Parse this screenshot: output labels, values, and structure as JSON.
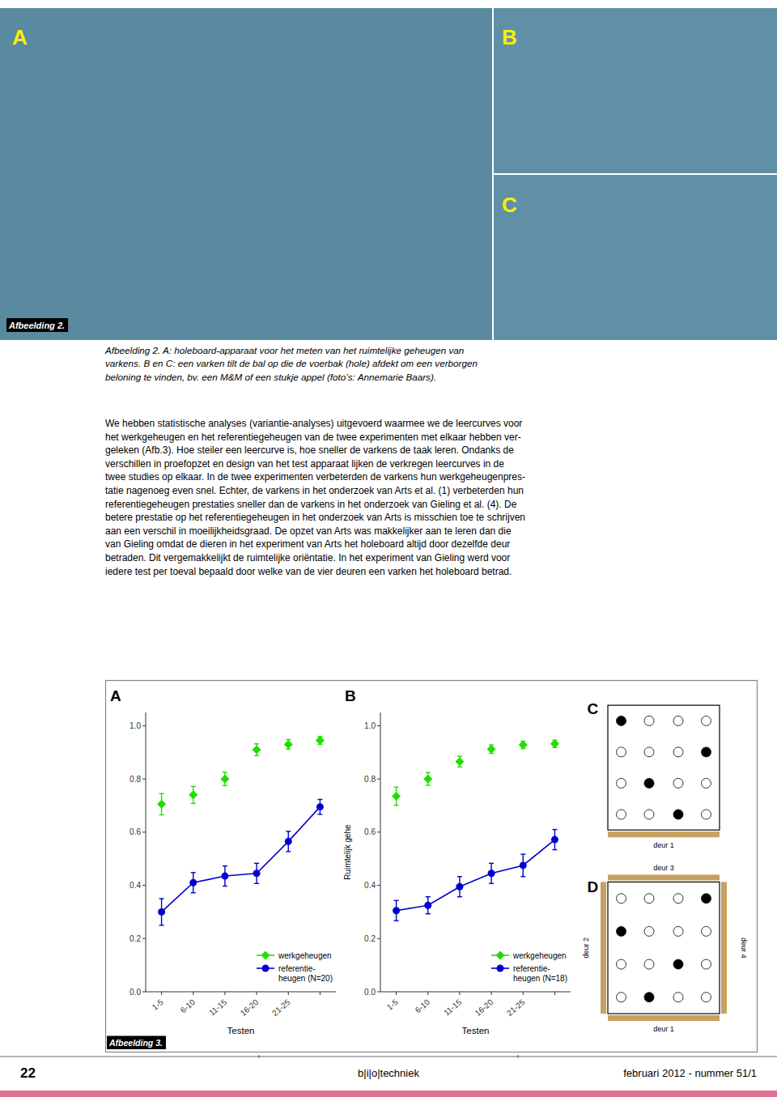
{
  "chart_data": [
    {
      "type": "line",
      "title": "A",
      "categories": [
        "1-5",
        "6-10",
        "11-15",
        "16-20",
        "21-25",
        null
      ],
      "x_label": "Testen",
      "ylim": [
        0.0,
        1.05
      ],
      "yticks": [
        {
          "value": 0.0,
          "label": "0.0"
        },
        0.2,
        0.4,
        0.6,
        0.8,
        {
          "value": 1.0,
          "label": "1.0"
        }
      ],
      "legend": "lower right",
      "annotations": [
        "Ruimtelijk gehe"
      ],
      "series": [
        {
          "name": "werkgeheugen",
          "color": "#22dd00",
          "marker": "diamond",
          "line_style": "none",
          "values": [
            0.705,
            0.74,
            0.8,
            0.91,
            0.93,
            0.945
          ],
          "errors": [
            0.04,
            0.032,
            0.025,
            0.022,
            0.018,
            0.015
          ]
        },
        {
          "name": "referentie-\nheugen (N=20)",
          "color": "#0000cc",
          "marker": "circle",
          "line_style": "solid",
          "values": [
            0.3,
            0.41,
            0.435,
            0.445,
            0.565,
            0.695
          ],
          "errors": [
            0.05,
            0.038,
            0.038,
            0.038,
            0.038,
            0.028
          ]
        }
      ]
    },
    {
      "type": "line",
      "title": "B",
      "categories": [
        "1-5",
        "6-10",
        "11-15",
        "16-20",
        "21-25",
        null
      ],
      "x_label": "Testen",
      "ylim": [
        0.0,
        1.05
      ],
      "yticks": [
        {
          "value": 0.0,
          "label": "0.0"
        },
        0.2,
        0.4,
        0.6,
        0.8,
        {
          "value": 1.0,
          "label": "1.0"
        }
      ],
      "legend": "lower right",
      "series": [
        {
          "name": "werkgeheugen",
          "color": "#22dd00",
          "marker": "diamond",
          "line_style": "none",
          "values": [
            0.735,
            0.8,
            0.865,
            0.912,
            0.928,
            0.932
          ],
          "errors": [
            0.034,
            0.024,
            0.02,
            0.016,
            0.014,
            0.014
          ]
        },
        {
          "name": "referentie-\nheugen (N=18)",
          "color": "#0000cc",
          "marker": "circle",
          "line_style": "solid",
          "values": [
            0.305,
            0.325,
            0.395,
            0.445,
            0.475,
            0.572
          ],
          "errors": [
            0.038,
            0.032,
            0.038,
            0.038,
            0.042,
            0.038
          ]
        }
      ]
    },
    {
      "type": "dot_grid",
      "title": "C",
      "color": "#c8a060",
      "annotations": [
        "deur 1"
      ],
      "values": [
        [
          1,
          0,
          0,
          0
        ],
        [
          0,
          0,
          0,
          1
        ],
        [
          0,
          1,
          0,
          0
        ],
        [
          0,
          0,
          1,
          0
        ]
      ]
    },
    {
      "type": "dot_grid",
      "title": "D",
      "color": "#c8a060",
      "annotations": [
        "deur 1",
        "deur 2",
        "deur 3",
        "deur 4"
      ],
      "values": [
        [
          0,
          0,
          0,
          1
        ],
        [
          1,
          0,
          0,
          0
        ],
        [
          0,
          0,
          1,
          0
        ],
        [
          0,
          1,
          0,
          0
        ]
      ]
    }
  ],
  "annotations": [
    "A",
    "B",
    "C",
    "Afbeelding 2.",
    "Afbeelding 2. A: holeboard-apparaat voor het meten van het ruimtelijke geheugen van\nvarkens. B en C: een varken tilt de bal op die de voerbak (hole) afdekt om een verborgen\nbeloning te vinden, bv. een M&M of een stukje appel (foto’s: Annemarie Baars).",
    "We hebben statistische analyses (variantie-analyses) uitgevoerd waarmee we de leercurves voor\nhet werkgeheugen en het referentiegeheugen van de twee experimenten met elkaar hebben ver-\ngeleken (Afb.3). Hoe steiler een leercurve is, hoe sneller de varkens de taak leren. Ondanks de\nverschillen in proefopzet en design van het test apparaat lijken de verkregen leercurves in de\ntwee studies op elkaar. In de twee experimenten verbeterden de varkens hun werkgeheugenpres-\ntatie nagenoeg even snel. Echter, de varkens in het onderzoek van Arts et al. (1) verbeterden hun\nreferentiegeheugen prestaties sneller dan de varkens in het onderzoek van Gieling et al. (4). De\nbetere prestatie op het referentiegeheugen in het onderzoek van Arts is misschien toe te schrijven\naan een verschil in moeilijkheidsgraad. De opzet van Arts was makkelijker aan te leren dan die\nvan Gieling omdat de dieren in het experiment van Arts het holeboard altijd door dezelfde deur\nbetraden. Dit vergemakkelijkt de ruimtelijke oriëntatie. In het experiment van Gieling werd voor\niedere test per toeval bepaald door welke van de vier deuren een varken het holeboard betrad.",
    "Afbeelding 3.",
    "22",
    "b|i|o|techniek",
    "februari 2012 - nummer 51/1"
  ]
}
